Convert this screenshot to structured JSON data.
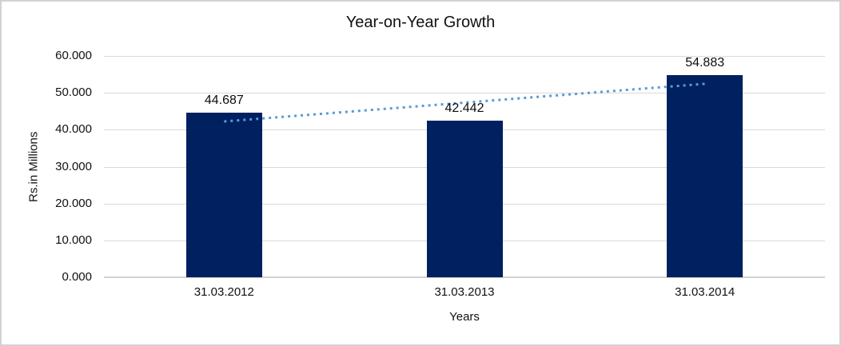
{
  "chart_data": {
    "type": "bar",
    "title": "Year-on-Year Growth",
    "xlabel": "Years",
    "ylabel": "Rs.in Millions",
    "categories": [
      "31.03.2012",
      "31.03.2013",
      "31.03.2014"
    ],
    "values": [
      44687,
      42442,
      54883
    ],
    "value_labels": [
      "44.687",
      "42.442",
      "54.883"
    ],
    "y_tick_labels": [
      "0.000",
      "10.000",
      "20.000",
      "30.000",
      "40.000",
      "50.000",
      "60.000"
    ],
    "ylim": [
      0,
      60000
    ],
    "y_step": 10000,
    "grid": "horizontal-only",
    "legend": "none",
    "trendline": {
      "type": "linear",
      "style": "dotted",
      "fitted_endpoints": [
        42239,
        52435
      ]
    },
    "colors": {
      "bar": "#002060",
      "trendline": "#5b9bd5",
      "gridline": "#d9d9d9",
      "axis_line": "#d2d2d2",
      "text": "#111111",
      "frame_border": "#d2d2d2",
      "background": "#ffffff"
    }
  }
}
